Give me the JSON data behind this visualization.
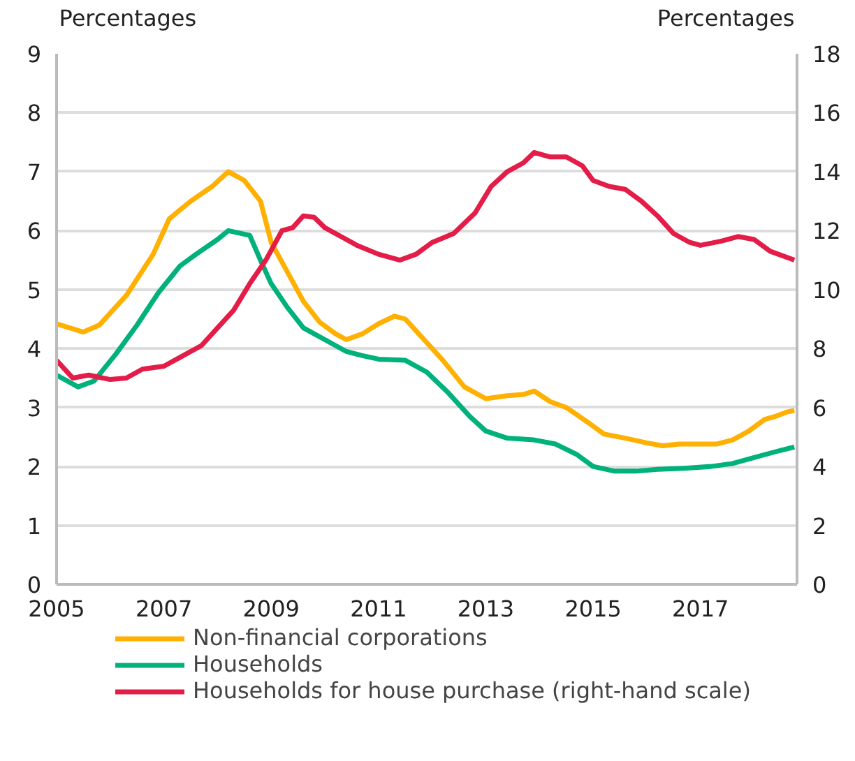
{
  "chart_data": {
    "type": "line",
    "ylabel": "Percentages",
    "y2label": "Percentages",
    "xlim": [
      2005,
      2018.8
    ],
    "xticks": [
      2005,
      2007,
      2009,
      2011,
      2013,
      2015,
      2017
    ],
    "ylim": [
      0,
      9
    ],
    "yticks": [
      0,
      1,
      2,
      3,
      4,
      5,
      6,
      7,
      8,
      9
    ],
    "y2lim": [
      0,
      18
    ],
    "y2ticks": [
      0,
      2,
      4,
      6,
      8,
      10,
      12,
      14,
      16,
      18
    ],
    "grid": "y",
    "legend": "bottom",
    "series": [
      {
        "name": "Non-financial corporations",
        "color": "#ffb000",
        "x": [
          2005.0,
          2005.5,
          2005.8,
          2006.3,
          2006.8,
          2007.1,
          2007.5,
          2007.9,
          2008.2,
          2008.5,
          2008.8,
          2009.0,
          2009.3,
          2009.6,
          2009.9,
          2010.2,
          2010.4,
          2010.7,
          2011.0,
          2011.3,
          2011.5,
          2011.8,
          2012.2,
          2012.6,
          2013.0,
          2013.4,
          2013.7,
          2013.9,
          2014.2,
          2014.5,
          2014.9,
          2015.2,
          2015.6,
          2016.0,
          2016.3,
          2016.6,
          2017.0,
          2017.3,
          2017.6,
          2017.9,
          2018.2,
          2018.4,
          2018.6,
          2018.75
        ],
        "values": [
          4.42,
          4.28,
          4.4,
          4.9,
          5.6,
          6.2,
          6.5,
          6.75,
          7.0,
          6.85,
          6.5,
          5.8,
          5.3,
          4.8,
          4.45,
          4.25,
          4.15,
          4.25,
          4.42,
          4.55,
          4.5,
          4.2,
          3.8,
          3.35,
          3.15,
          3.2,
          3.22,
          3.28,
          3.1,
          3.0,
          2.75,
          2.55,
          2.48,
          2.4,
          2.35,
          2.38,
          2.38,
          2.38,
          2.45,
          2.6,
          2.8,
          2.85,
          2.92,
          2.95
        ]
      },
      {
        "name": "Households",
        "color": "#00b17c",
        "x": [
          2005.0,
          2005.4,
          2005.7,
          2006.1,
          2006.5,
          2006.9,
          2007.3,
          2007.6,
          2008.0,
          2008.2,
          2008.6,
          2008.8,
          2009.0,
          2009.3,
          2009.6,
          2010.0,
          2010.4,
          2010.7,
          2011.0,
          2011.5,
          2011.9,
          2012.3,
          2012.7,
          2013.0,
          2013.4,
          2013.9,
          2014.3,
          2014.7,
          2015.0,
          2015.4,
          2015.8,
          2016.2,
          2016.7,
          2017.2,
          2017.6,
          2018.0,
          2018.4,
          2018.75
        ],
        "values": [
          3.55,
          3.35,
          3.45,
          3.9,
          4.4,
          4.95,
          5.4,
          5.6,
          5.85,
          6.0,
          5.92,
          5.5,
          5.1,
          4.7,
          4.35,
          4.15,
          3.95,
          3.88,
          3.82,
          3.8,
          3.6,
          3.25,
          2.85,
          2.6,
          2.48,
          2.45,
          2.38,
          2.2,
          2.0,
          1.92,
          1.92,
          1.95,
          1.97,
          2.0,
          2.05,
          2.15,
          2.25,
          2.33
        ]
      },
      {
        "name": "Households for house purchase (right-hand scale)",
        "color": "#e31c48",
        "axis": "y2",
        "x": [
          2005.0,
          2005.3,
          2005.6,
          2006.0,
          2006.3,
          2006.6,
          2007.0,
          2007.3,
          2007.7,
          2008.0,
          2008.3,
          2008.6,
          2008.9,
          2009.2,
          2009.4,
          2009.6,
          2009.8,
          2010.0,
          2010.3,
          2010.6,
          2011.0,
          2011.4,
          2011.7,
          2012.0,
          2012.4,
          2012.8,
          2013.1,
          2013.4,
          2013.7,
          2013.9,
          2014.2,
          2014.5,
          2014.8,
          2015.0,
          2015.3,
          2015.6,
          2015.9,
          2016.2,
          2016.5,
          2016.8,
          2017.0,
          2017.4,
          2017.7,
          2018.0,
          2018.3,
          2018.75
        ],
        "values": [
          7.6,
          7.0,
          7.1,
          6.95,
          7.0,
          7.3,
          7.4,
          7.7,
          8.1,
          8.7,
          9.3,
          10.2,
          11.0,
          12.0,
          12.1,
          12.5,
          12.45,
          12.1,
          11.8,
          11.5,
          11.2,
          11.0,
          11.2,
          11.6,
          11.9,
          12.6,
          13.5,
          14.0,
          14.3,
          14.65,
          14.5,
          14.5,
          14.2,
          13.7,
          13.5,
          13.4,
          13.0,
          12.5,
          11.9,
          11.6,
          11.5,
          11.65,
          11.8,
          11.7,
          11.3,
          11.0
        ]
      }
    ]
  }
}
